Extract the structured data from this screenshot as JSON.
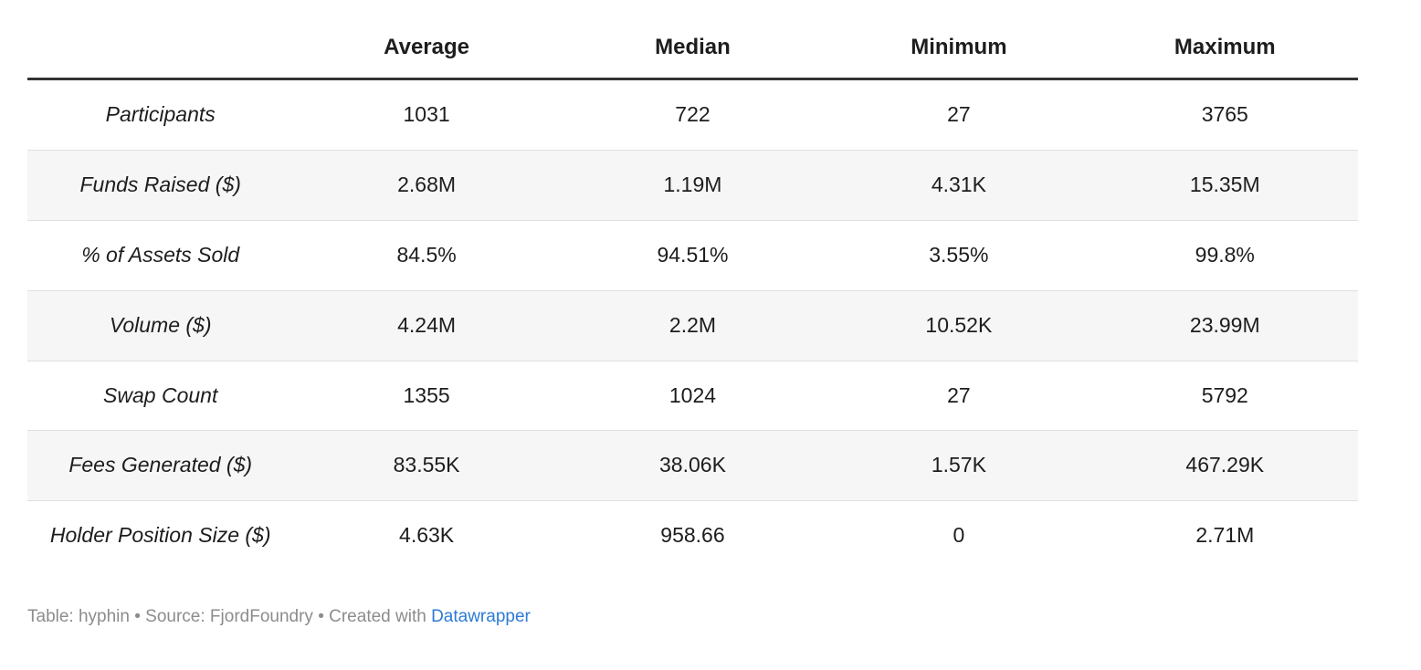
{
  "chart_data": {
    "type": "table",
    "columns": [
      "",
      "Average",
      "Median",
      "Minimum",
      "Maximum"
    ],
    "rows": [
      {
        "label": "Participants",
        "values": [
          "1031",
          "722",
          "27",
          "3765"
        ]
      },
      {
        "label": "Funds Raised ($)",
        "values": [
          "2.68M",
          "1.19M",
          "4.31K",
          "15.35M"
        ]
      },
      {
        "label": "% of Assets Sold",
        "values": [
          "84.5%",
          "94.51%",
          "3.55%",
          "99.8%"
        ]
      },
      {
        "label": "Volume ($)",
        "values": [
          "4.24M",
          "2.2M",
          "10.52K",
          "23.99M"
        ]
      },
      {
        "label": "Swap Count",
        "values": [
          "1355",
          "1024",
          "27",
          "5792"
        ]
      },
      {
        "label": "Fees Generated ($)",
        "values": [
          "83.55K",
          "38.06K",
          "1.57K",
          "467.29K"
        ]
      },
      {
        "label": "Holder Position Size ($)",
        "values": [
          "4.63K",
          "958.66",
          "0",
          "2.71M"
        ]
      }
    ],
    "layout_hints": {
      "zebra_striped_rows": [
        1,
        3,
        5
      ],
      "row_labels_italic": true,
      "cell_alignment": "center"
    }
  },
  "colors": {
    "header_rule": "#333333",
    "row_separator": "#e0e0e0",
    "stripe_background": "#f6f6f6",
    "text": "#1d1d1d",
    "footer_text": "#8c8c8c",
    "link": "#2d7bd4"
  },
  "footer": {
    "attribution_prefix": "Table: hyphin • Source: FjordFoundry • Created with ",
    "link_label": "Datawrapper"
  }
}
